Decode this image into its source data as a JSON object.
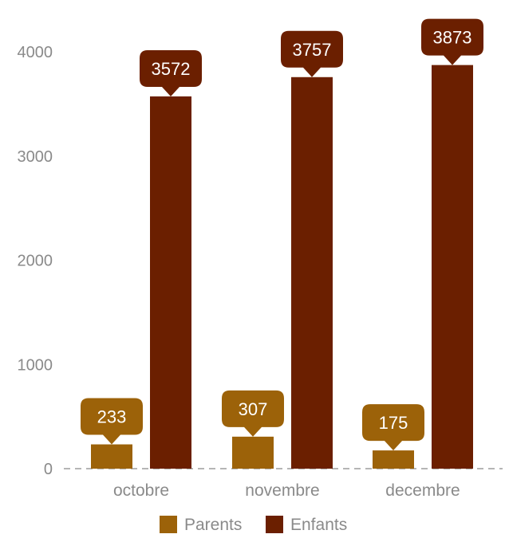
{
  "chart_data": {
    "type": "bar",
    "categories": [
      "octobre",
      "novembre",
      "decembre"
    ],
    "series": [
      {
        "name": "Parents",
        "values": [
          233,
          307,
          175
        ],
        "color": "#9c6209"
      },
      {
        "name": "Enfants",
        "values": [
          3572,
          3757,
          3873
        ],
        "color": "#6b1f00"
      }
    ],
    "ylim": [
      0,
      4000
    ],
    "yticks": [
      "0",
      "1000",
      "2000",
      "3000",
      "4000"
    ],
    "grid": false,
    "legend_position": "bottom"
  }
}
